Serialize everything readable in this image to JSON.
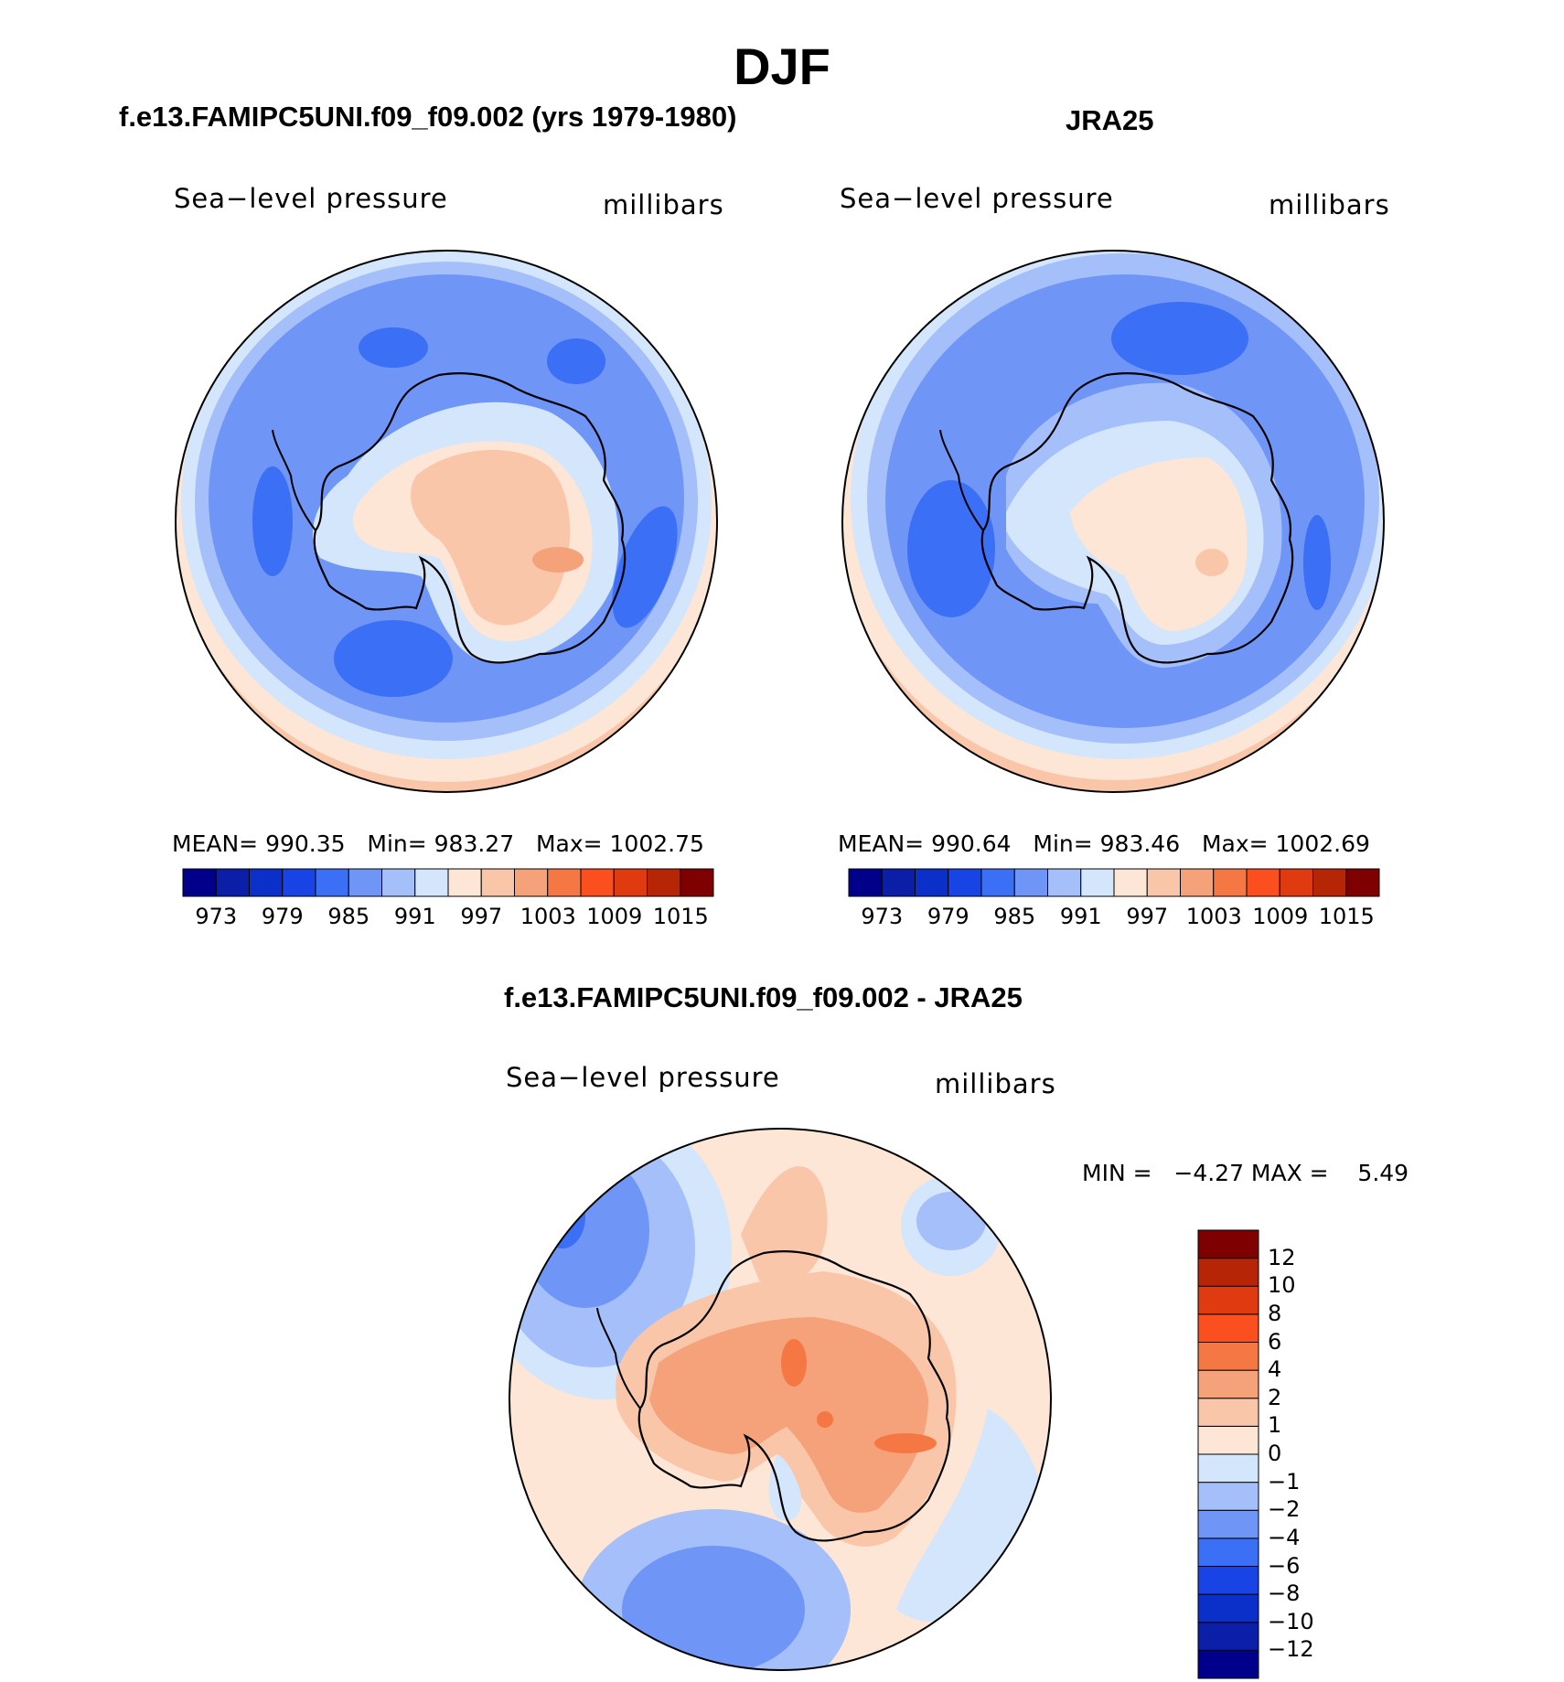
{
  "figure": {
    "title": "DJF"
  },
  "panels": [
    {
      "id": "model",
      "header": "f.e13.FAMIPC5UNI.f09_f09.002 (yrs 1979-1980)",
      "left_label": "Sea−level pressure",
      "right_label": "millibars",
      "stats": "MEAN= 990.35   Min= 983.27   Max= 1002.75"
    },
    {
      "id": "obs",
      "header": "JRA25",
      "left_label": "Sea−level pressure",
      "right_label": "millibars",
      "stats": "MEAN= 990.64   Min= 983.46   Max= 1002.69"
    },
    {
      "id": "diff",
      "header": "f.e13.FAMIPC5UNI.f09_f09.002 - JRA25",
      "left_label": "Sea−level pressure",
      "right_label": "millibars",
      "stats": "MIN =   −4.27 MAX =    5.49"
    }
  ],
  "colorbar_abs": {
    "colors": [
      "#00008b",
      "#0a1ea8",
      "#0b30c9",
      "#1844e6",
      "#3b6ff5",
      "#6f96f7",
      "#a4bff9",
      "#d4e6fb",
      "#fde6d6",
      "#fac6aa",
      "#f5a17a",
      "#f57844",
      "#fc4f1f",
      "#e03a10",
      "#b72507",
      "#7e0000"
    ],
    "tick_labels": [
      "973",
      "979",
      "985",
      "991",
      "997",
      "1003",
      "1009",
      "1015"
    ]
  },
  "colorbar_diff": {
    "colors": [
      "#00008b",
      "#0a1ea8",
      "#0b30c9",
      "#1844e6",
      "#3b6ff5",
      "#6f96f7",
      "#a4bff9",
      "#d4e6fb",
      "#fde6d6",
      "#fac6aa",
      "#f5a17a",
      "#f57844",
      "#fc4f1f",
      "#e03a10",
      "#b72507",
      "#7e0000"
    ],
    "tick_labels": [
      "−12",
      "−10",
      "−8",
      "−6",
      "−4",
      "−2",
      "−1",
      "0",
      "1",
      "2",
      "4",
      "6",
      "8",
      "10",
      "12"
    ]
  },
  "chart_data": [
    {
      "type": "heatmap",
      "title": "f.e13.FAMIPC5UNI.f09_f09.002 (yrs 1979-1980)",
      "variable": "Sea−level pressure",
      "units": "millibars",
      "projection": "south polar stereographic",
      "levels": [
        973,
        976,
        979,
        982,
        985,
        988,
        991,
        994,
        997,
        1000,
        1003,
        1006,
        1009,
        1012,
        1015
      ],
      "mean": 990.35,
      "min": 983.27,
      "max": 1002.75
    },
    {
      "type": "heatmap",
      "title": "JRA25",
      "variable": "Sea−level pressure",
      "units": "millibars",
      "projection": "south polar stereographic",
      "levels": [
        973,
        976,
        979,
        982,
        985,
        988,
        991,
        994,
        997,
        1000,
        1003,
        1006,
        1009,
        1012,
        1015
      ],
      "mean": 990.64,
      "min": 983.46,
      "max": 1002.69
    },
    {
      "type": "heatmap",
      "title": "f.e13.FAMIPC5UNI.f09_f09.002 - JRA25",
      "variable": "Sea−level pressure",
      "units": "millibars",
      "projection": "south polar stereographic",
      "levels": [
        -12,
        -10,
        -8,
        -6,
        -4,
        -2,
        -1,
        0,
        1,
        2,
        4,
        6,
        8,
        10,
        12
      ],
      "min": -4.27,
      "max": 5.49
    }
  ]
}
